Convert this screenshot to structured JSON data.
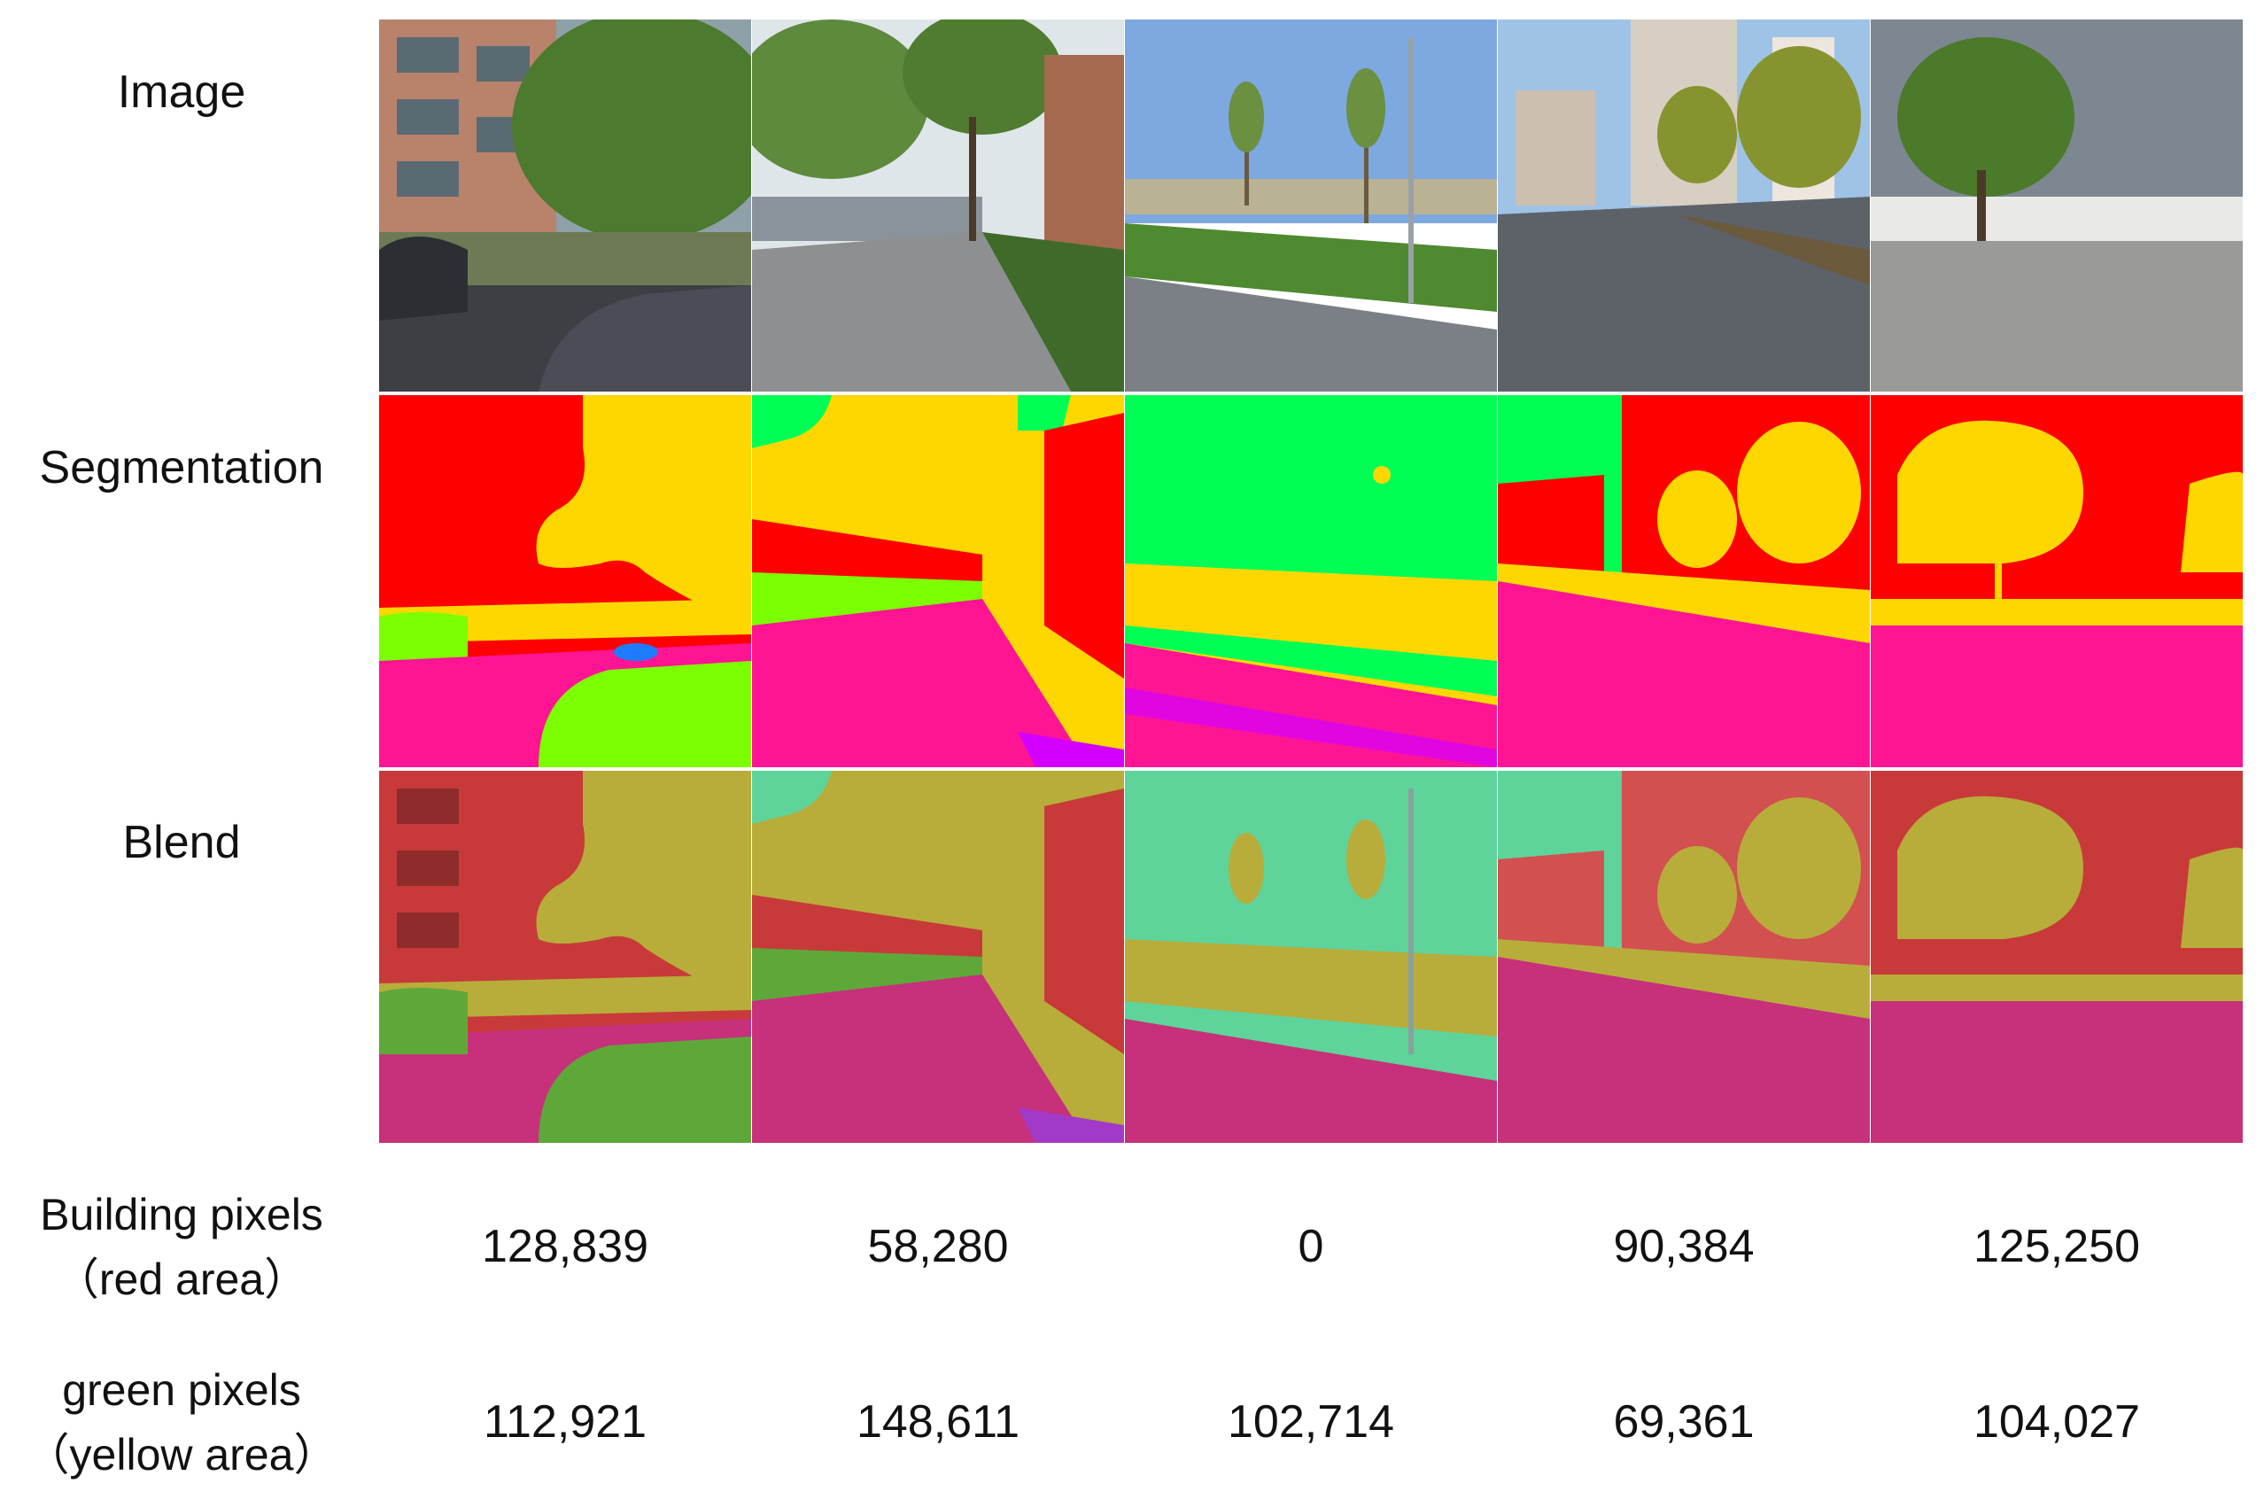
{
  "row_labels": {
    "image": "Image",
    "segmentation": "Segmentation",
    "blend": "Blend",
    "building_line1": "Building pixels",
    "building_line2": "（red area）",
    "green_line1": "green pixels",
    "green_line2": "（yellow area）"
  },
  "colors": {
    "building": "#ff0000",
    "vegetation": "#ffd700",
    "sky": "#00ff55",
    "road": "#ff1493",
    "car": "#7cff00",
    "sidewalk": "#d400ff",
    "person": "#1e7bff"
  },
  "values": {
    "building": [
      "128,839",
      "58,280",
      "0",
      "90,384",
      "125,250"
    ],
    "green": [
      "112,921",
      "148,611",
      "102,714",
      "69,361",
      "104,027"
    ]
  }
}
